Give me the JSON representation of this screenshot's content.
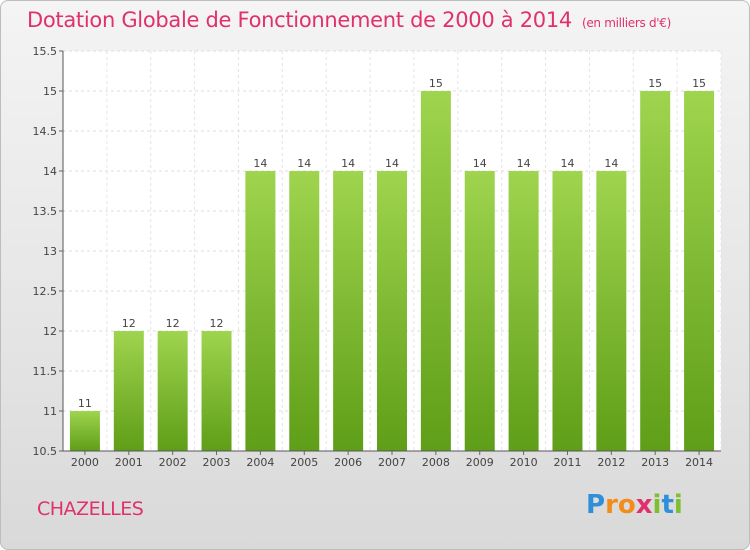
{
  "chart_data": {
    "type": "bar",
    "title": "Dotation Globale de Fonctionnement de 2000 à 2014",
    "unit": "(en milliers d'€)",
    "categories": [
      "2000",
      "2001",
      "2002",
      "2003",
      "2004",
      "2005",
      "2006",
      "2007",
      "2008",
      "2009",
      "2010",
      "2011",
      "2012",
      "2013",
      "2014"
    ],
    "values": [
      11,
      12,
      12,
      12,
      14,
      14,
      14,
      14,
      15,
      14,
      14,
      14,
      14,
      15,
      15
    ],
    "ylim": [
      10.5,
      15.5
    ],
    "yticks": [
      "10.5",
      "11",
      "11.5",
      "12",
      "12.5",
      "13",
      "13.5",
      "14",
      "14.5",
      "15",
      "15.5"
    ],
    "grid": true,
    "bar_color": "#7dbf2e"
  },
  "footer": {
    "town": "CHAZELLES",
    "logo_letters": [
      {
        "ch": "P",
        "color": "#2f8fd8"
      },
      {
        "ch": "r",
        "color": "#f28c1a"
      },
      {
        "ch": "o",
        "color": "#f28c1a"
      },
      {
        "ch": "x",
        "color": "#e0306e"
      },
      {
        "ch": "i",
        "color": "#7dbf2e"
      },
      {
        "ch": "t",
        "color": "#2f8fd8"
      },
      {
        "ch": "i",
        "color": "#7dbf2e"
      }
    ]
  }
}
